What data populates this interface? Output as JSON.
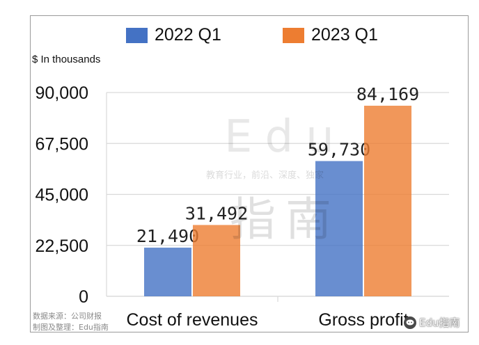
{
  "legend": [
    {
      "label": "2022 Q1",
      "color": "#4472C4"
    },
    {
      "label": "2023 Q1",
      "color": "#ED7D31"
    }
  ],
  "unit_label": "$ In thousands",
  "source": {
    "line1": "数据来源：公司财报",
    "line2": "制图及整理：Edu指南"
  },
  "watermark": {
    "main": "Edu",
    "tagline": "教育行业，前沿、深度、独家",
    "sub": "指南"
  },
  "brand": {
    "text": "Edu指南",
    "icon": "chat-bubble-icon"
  },
  "chart_data": {
    "type": "bar",
    "categories": [
      "Cost of revenues",
      "Gross profit"
    ],
    "series": [
      {
        "name": "2022 Q1",
        "color": "#4472C4",
        "values": [
          21490,
          59730
        ],
        "labels": [
          "21,490",
          "59,730"
        ]
      },
      {
        "name": "2023 Q1",
        "color": "#ED7D31",
        "values": [
          31492,
          84169
        ],
        "labels": [
          "31,492",
          "84,169"
        ]
      }
    ],
    "ylabel": "$ In thousands",
    "ylim": [
      0,
      90000
    ],
    "yticks": [
      0,
      22500,
      45000,
      67500,
      90000
    ],
    "ytick_labels": [
      "0",
      "22,500",
      "45,000",
      "67,500",
      "90,000"
    ],
    "grid": true,
    "legend_position": "top-center"
  }
}
